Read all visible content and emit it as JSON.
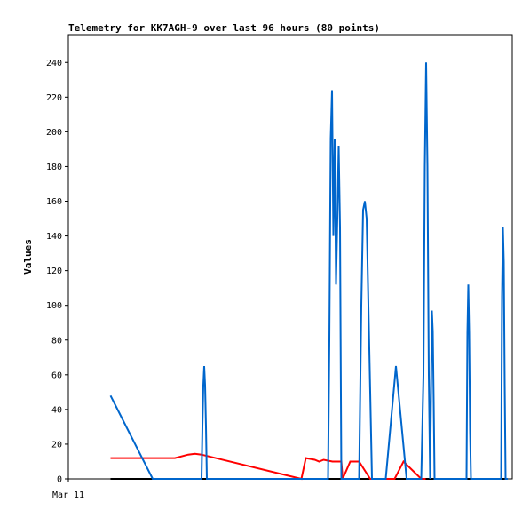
{
  "chart_data": {
    "type": "line",
    "title": "Telemetry for KK7AGH-9 over last 96 hours (80 points)",
    "xlabel": "",
    "ylabel": "Values",
    "x_tick_labels": [
      "Mar 11"
    ],
    "ylim": [
      0,
      256
    ],
    "y_ticks": [
      0,
      20,
      40,
      60,
      80,
      100,
      120,
      140,
      160,
      180,
      200,
      220,
      240
    ],
    "grid": false,
    "legend": "none",
    "x_domain": [
      0,
      100
    ],
    "series": [
      {
        "color": "#000000",
        "x": [
          9.5,
          99
        ],
        "y": [
          0,
          0
        ]
      },
      {
        "color": "#ff0000",
        "x": [
          9.5,
          24,
          27,
          28.5,
          30,
          52.5,
          53.5,
          55.5,
          56.5,
          57.5,
          59.5,
          60.5,
          61.5,
          61.8,
          63.5,
          65.5,
          68,
          73.5,
          75.5,
          79.5,
          80.5
        ],
        "y": [
          12,
          12,
          14,
          14.5,
          14,
          0,
          12,
          11,
          10,
          11,
          10,
          10,
          10,
          0,
          10,
          10,
          0,
          0,
          10,
          0,
          0
        ]
      },
      {
        "color": "#0066cc",
        "x": [
          9.5,
          19,
          30,
          30.2,
          30.4,
          30.6,
          30.8,
          31.0,
          31.2,
          31.4,
          58.5,
          58.8,
          59.1,
          59.4,
          59.7,
          60.0,
          60.3,
          60.6,
          60.9,
          61.2,
          61.5,
          61.8,
          62.1,
          62.4,
          65.5,
          66.0,
          66.4,
          66.8,
          67.2,
          67.6,
          68.0,
          68.4,
          68.8,
          69.5,
          71.5,
          73.8,
          76.2,
          79.5,
          80.0,
          80.3,
          80.6,
          80.9,
          81.2,
          81.5,
          81.7,
          81.9,
          82.1,
          82.3,
          82.5,
          82.7,
          82.9,
          83.1,
          83.3,
          83.5,
          83.7,
          89.7,
          89.9,
          90.1,
          90.3,
          90.5,
          90.7,
          97.5,
          97.7,
          97.9,
          98.1,
          98.3,
          98.5,
          98.7,
          99.0
        ],
        "y": [
          48,
          0,
          0,
          30,
          54,
          65,
          54,
          30,
          0,
          0,
          0,
          80,
          196,
          224,
          140,
          196,
          112,
          150,
          192,
          145,
          0,
          0,
          0,
          0,
          0,
          100,
          155,
          160,
          150,
          100,
          50,
          0,
          0,
          0,
          0,
          65,
          0,
          0,
          60,
          180,
          240,
          180,
          60,
          0,
          50,
          97,
          85,
          45,
          0,
          0,
          0,
          0,
          0,
          0,
          0,
          0,
          84,
          112,
          84,
          28,
          0,
          0,
          105,
          145,
          125,
          55,
          0,
          0,
          0
        ]
      }
    ]
  }
}
